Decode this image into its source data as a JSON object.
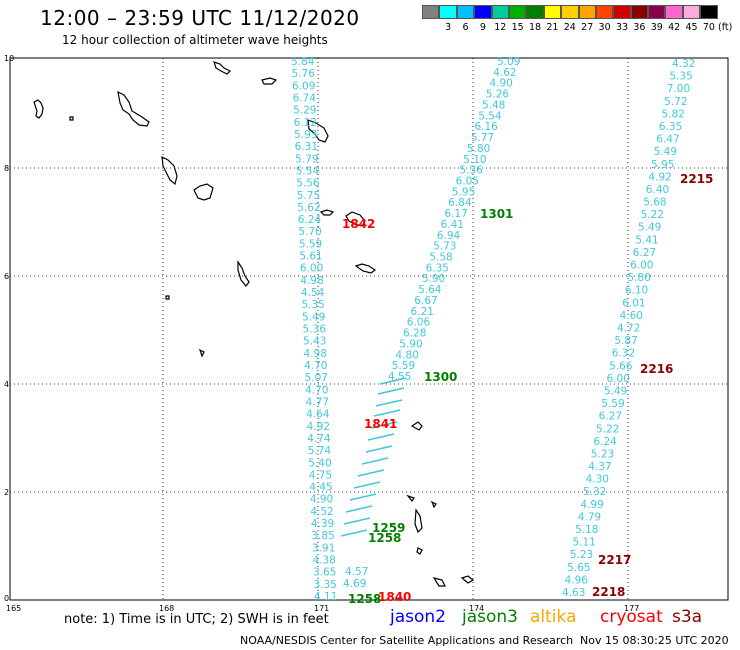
{
  "header": {
    "title": "12:00 – 23:59 UTC 11/12/2020",
    "subtitle": "12 hour collection of altimeter wave heights"
  },
  "color_scale": {
    "labels": [
      "3",
      "6",
      "9",
      "12",
      "15",
      "18",
      "21",
      "24",
      "27",
      "30",
      "33",
      "36",
      "39",
      "42",
      "45",
      "70"
    ],
    "unit": "(ft)",
    "colors": [
      "#808080",
      "#00ffff",
      "#00bfff",
      "#0000ff",
      "#00cc99",
      "#00b000",
      "#008000",
      "#ffff00",
      "#ffd000",
      "#ffa500",
      "#ff4500",
      "#d00000",
      "#8b0000",
      "#8b004b",
      "#ff66cc",
      "#ffaadd",
      "#000000"
    ]
  },
  "axes": {
    "lon_ticks": [
      "165",
      "168",
      "171",
      "174",
      "177"
    ],
    "lat_ticks": [
      "0",
      "2",
      "4",
      "6",
      "8",
      "10"
    ]
  },
  "tracks": {
    "track_a": [
      "5.84",
      "5.76",
      "6.09",
      "6.74",
      "5.29",
      "6.12",
      "5.93",
      "6.31",
      "5.79",
      "5.54",
      "5.56",
      "5.75",
      "5.62",
      "6.24",
      "5.70",
      "5.59",
      "5.61",
      "6.00",
      "4.98",
      "4.54",
      "5.35",
      "5.49",
      "5.36",
      "5.43",
      "4.98",
      "4.70",
      "5.07",
      "4.70",
      "4.77",
      "4.64",
      "4.92",
      "4.74",
      "5.74",
      "5.40",
      "4.75",
      "4.45",
      "4.90",
      "4.52",
      "4.39",
      "3.85",
      "3.91",
      "4.38",
      "3.65",
      "3.35",
      "4.11"
    ],
    "track_b": [
      "5.09",
      "4.62",
      "4.90",
      "5.26",
      "5.48",
      "5.54",
      "6.16",
      "5.77",
      "5.80",
      "5.10",
      "5.36",
      "6.05",
      "5.95",
      "6.84",
      "6.17",
      "6.41",
      "6.94",
      "5.73",
      "5.58",
      "6.35",
      "5.90",
      "5.64",
      "6.67",
      "6.21",
      "6.06",
      "6.28",
      "5.90",
      "4.80",
      "5.59",
      "4.55"
    ],
    "track_b_extra": [
      "4.57",
      "4.69"
    ],
    "track_c": [
      "4.32",
      "5.35",
      "7.00",
      "5.72",
      "5.82",
      "6.35",
      "6.47",
      "5.49",
      "5.95",
      "4.92",
      "6.40",
      "5.68",
      "5.22",
      "5.49",
      "5.41",
      "6.27",
      "6.00",
      "5.80",
      "6.10",
      "6.01",
      "4.60",
      "4.72",
      "5.87",
      "6.32",
      "5.66",
      "6.00",
      "5.49",
      "5.59",
      "6.27",
      "5.22",
      "6.24",
      "5.23",
      "4.37",
      "4.30",
      "5.32",
      "4.99",
      "4.79",
      "5.18",
      "5.11",
      "5.23",
      "5.65",
      "4.96",
      "4.63"
    ]
  },
  "pass_times": [
    {
      "label": "1842",
      "color": "#ff0000"
    },
    {
      "label": "1301",
      "color": "#008000"
    },
    {
      "label": "2215",
      "color": "#8b0000"
    },
    {
      "label": "1300",
      "color": "#008000"
    },
    {
      "label": "2216",
      "color": "#8b0000"
    },
    {
      "label": "1841",
      "color": "#ff0000"
    },
    {
      "label": "1259",
      "color": "#008000"
    },
    {
      "label": "1258",
      "color": "#008000"
    },
    {
      "label": "2217",
      "color": "#8b0000"
    },
    {
      "label": "2218",
      "color": "#8b0000"
    },
    {
      "label": "1258",
      "color": "#008000"
    },
    {
      "label": "1840",
      "color": "#ff0000"
    }
  ],
  "footer": {
    "note": "note: 1) Time is in UTC; 2) SWH is in feet",
    "legend": [
      {
        "label": "jason2",
        "color": "#0000ff"
      },
      {
        "label": "jason3",
        "color": "#008000"
      },
      {
        "label": "altika",
        "color": "#ffa500"
      },
      {
        "label": "cryosat",
        "color": "#ff0000"
      },
      {
        "label": "s3a",
        "color": "#8b0000"
      }
    ],
    "credit": "NOAA/NESDIS Center for Satellite Applications and Research",
    "timestamp": "Nov 15 08:30:25 UTC 2020"
  }
}
